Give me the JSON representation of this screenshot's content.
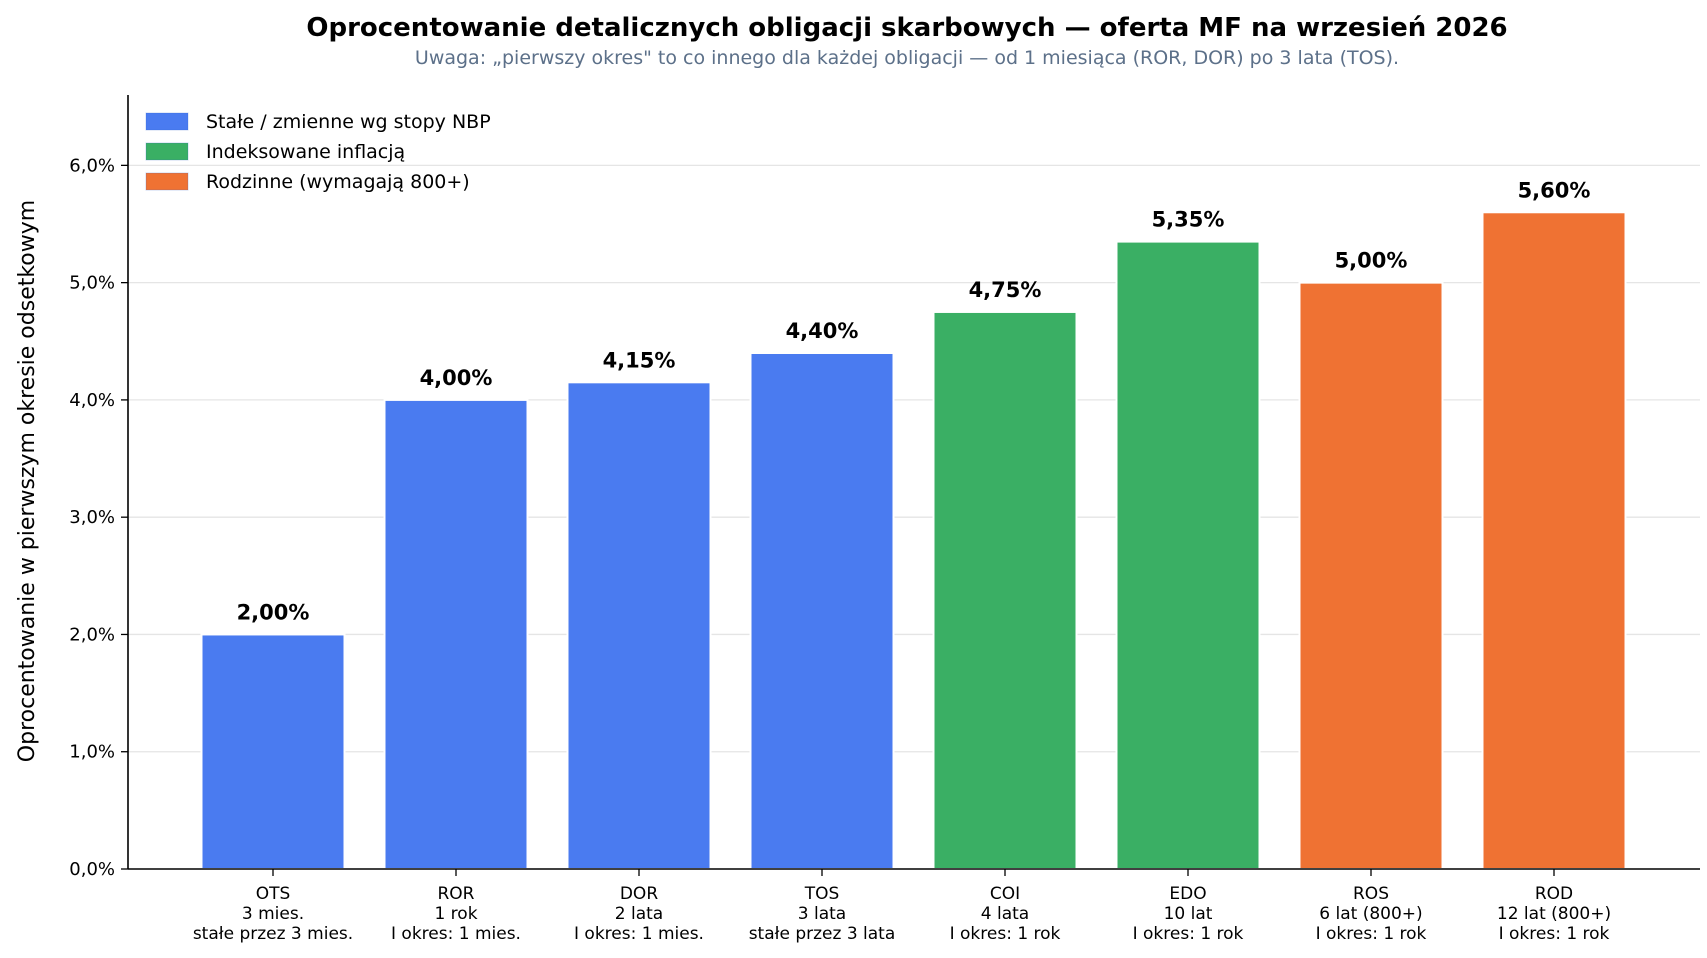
{
  "chart_data": {
    "type": "bar",
    "title": "Oprocentowanie detalicznych obligacji skarbowych — oferta MF na wrzesień 2026",
    "subtitle": "Uwaga: „pierwszy okres\" to co innego dla każdej obligacji — od 1 miesiąca (ROR, DOR) po 3 lata (TOS).",
    "ylabel": "Oprocentowanie w pierwszym okresie odsetkowym",
    "xlabel": "",
    "ylim": [
      0,
      6.6
    ],
    "yticks": [
      0,
      1,
      2,
      3,
      4,
      5,
      6
    ],
    "ytick_labels": [
      "0,0%",
      "1,0%",
      "2,0%",
      "3,0%",
      "4,0%",
      "5,0%",
      "6,0%"
    ],
    "grid": "horizontal",
    "legend_position": "top-left",
    "categories": [
      [
        "OTS",
        "3 mies.",
        "stałe przez 3 mies."
      ],
      [
        "ROR",
        "1 rok",
        "I okres: 1 mies."
      ],
      [
        "DOR",
        "2 lata",
        "I okres: 1 mies."
      ],
      [
        "TOS",
        "3 lata",
        "stałe przez 3 lata"
      ],
      [
        "COI",
        "4 lata",
        "I okres: 1 rok"
      ],
      [
        "EDO",
        "10 lat",
        "I okres: 1 rok"
      ],
      [
        "ROS",
        "6 lat (800+)",
        "I okres: 1 rok"
      ],
      [
        "ROD",
        "12 lat (800+)",
        "I okres: 1 rok"
      ]
    ],
    "values": [
      2.0,
      4.0,
      4.15,
      4.4,
      4.75,
      5.35,
      5.0,
      5.6
    ],
    "value_labels": [
      "2,00%",
      "4,00%",
      "4,15%",
      "4,40%",
      "4,75%",
      "5,35%",
      "5,00%",
      "5,60%"
    ],
    "groups": [
      0,
      0,
      0,
      0,
      1,
      1,
      2,
      2
    ],
    "legend": [
      {
        "label": "Stałe / zmienne wg stopy NBP",
        "color": "#4a7bf0"
      },
      {
        "label": "Indeksowane inflacją",
        "color": "#3aaf64"
      },
      {
        "label": "Rodzinne (wymagają 800+)",
        "color": "#ef7233"
      }
    ]
  }
}
